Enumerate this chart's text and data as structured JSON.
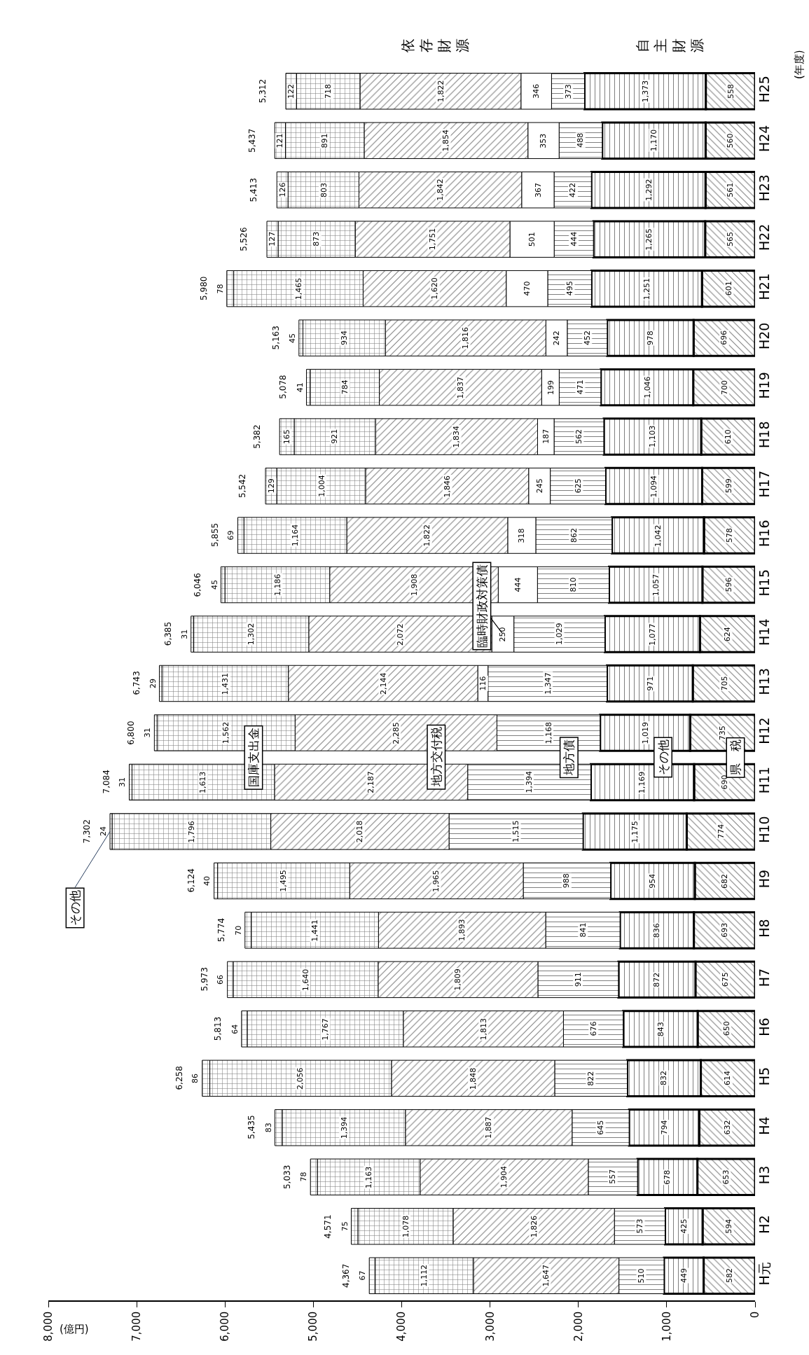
{
  "chart_data": {
    "type": "bar",
    "orientation": "horizontal",
    "stacked": true,
    "legend": false,
    "xlabel": "(億円)",
    "ylabel": "(年度)",
    "categories": [
      "H25",
      "H24",
      "H23",
      "H22",
      "H21",
      "H20",
      "H19",
      "H18",
      "H17",
      "H16",
      "H15",
      "H14",
      "H13",
      "H12",
      "H11",
      "H10",
      "H9",
      "H8",
      "H7",
      "H6",
      "H5",
      "H4",
      "H3",
      "H2",
      "H元"
    ],
    "xlim": [
      8000,
      0
    ],
    "xticks": [
      {
        "value": 0,
        "label": "0"
      },
      {
        "value": 1000,
        "label": "1,000"
      },
      {
        "value": 2000,
        "label": "2,000"
      },
      {
        "value": 3000,
        "label": "3,000"
      },
      {
        "value": 4000,
        "label": "4,000"
      },
      {
        "value": 5000,
        "label": "5,000"
      },
      {
        "value": 6000,
        "label": "6,000"
      },
      {
        "value": 7000,
        "label": "7,000"
      },
      {
        "value": 8000,
        "label": "8,000"
      }
    ],
    "series": [
      {
        "name": "県　税",
        "color": "#000000",
        "values": [
          558,
          560,
          561,
          565,
          601,
          696,
          700,
          610,
          599,
          578,
          596,
          624,
          705,
          735,
          690,
          774,
          682,
          693,
          675,
          650,
          614,
          632,
          653,
          594,
          582
        ],
        "value_labels": [
          "558",
          "560",
          "561",
          "565",
          "601",
          "696",
          "700",
          "610",
          "599",
          "578",
          "596",
          "624",
          "705",
          "735",
          "690",
          "774",
          "682",
          "693",
          "675",
          "650",
          "614",
          "632",
          "653",
          "594",
          "582"
        ]
      },
      {
        "name": "その他",
        "color": "#000000",
        "values": [
          1373,
          1170,
          1292,
          1265,
          1251,
          978,
          1046,
          1103,
          1094,
          1042,
          1057,
          1077,
          971,
          1019,
          1169,
          1175,
          954,
          836,
          872,
          843,
          832,
          794,
          678,
          425,
          449
        ],
        "value_labels": [
          "1,373",
          "1,170",
          "1,292",
          "1,265",
          "1,251",
          "978",
          "1,046",
          "1,103",
          "1,094",
          "1,042",
          "1,057",
          "1,077",
          "971",
          "1,019",
          "1,169",
          "1,175",
          "954",
          "836",
          "872",
          "843",
          "832",
          "794",
          "678",
          "425",
          "449"
        ]
      },
      {
        "name": "地方債",
        "color": "#000000",
        "values": [
          373,
          488,
          422,
          444,
          495,
          452,
          471,
          562,
          625,
          862,
          810,
          1029,
          1347,
          1168,
          1394,
          1515,
          988,
          841,
          911,
          676,
          822,
          645,
          557,
          573,
          510
        ],
        "value_labels": [
          "373",
          "488",
          "422",
          "444",
          "495",
          "452",
          "471",
          "562",
          "625",
          "862",
          "810",
          "1,029",
          "1,347",
          "1,168",
          "1,394",
          "1,515",
          "988",
          "841",
          "911",
          "676",
          "822",
          "645",
          "557",
          "573",
          "510"
        ]
      },
      {
        "name": "臨時財政対策債",
        "color": "#ffffff",
        "values": [
          346,
          353,
          367,
          501,
          470,
          242,
          199,
          187,
          245,
          318,
          444,
          250,
          116,
          null,
          null,
          null,
          null,
          null,
          null,
          null,
          null,
          null,
          null,
          null,
          null
        ],
        "value_labels": [
          "346",
          "353",
          "367",
          "501",
          "470",
          "242",
          "199",
          "187",
          "245",
          "318",
          "444",
          "250",
          "116",
          null,
          null,
          null,
          null,
          null,
          null,
          null,
          null,
          null,
          null,
          null,
          null
        ]
      },
      {
        "name": "地方交付税",
        "color": "#000000",
        "values": [
          1822,
          1854,
          1842,
          1751,
          1620,
          1816,
          1837,
          1834,
          1846,
          1822,
          1908,
          2072,
          2144,
          2285,
          2187,
          2018,
          1965,
          1893,
          1809,
          1813,
          1848,
          1887,
          1904,
          1826,
          1647
        ],
        "value_labels": [
          "1,822",
          "1,854",
          "1,842",
          "1,751",
          "1,620",
          "1,816",
          "1,837",
          "1,834",
          "1,846",
          "1,822",
          "1,908",
          "2,072",
          "2,144",
          "2,285",
          "2,187",
          "2,018",
          "1,965",
          "1,893",
          "1,809",
          "1,813",
          "1,848",
          "1,887",
          "1,904",
          "1,826",
          "1,647"
        ]
      },
      {
        "name": "国庫支出金",
        "color": "#000000",
        "values": [
          718,
          891,
          803,
          873,
          1465,
          934,
          784,
          921,
          1004,
          1164,
          1186,
          1302,
          1431,
          1562,
          1613,
          1796,
          1495,
          1441,
          1640,
          1767,
          2056,
          1394,
          1163,
          1078,
          1112
        ],
        "value_labels": [
          "718",
          "891",
          "803",
          "873",
          "1,465",
          "934",
          "784",
          "921",
          "1,004",
          "1,164",
          "1,186",
          "1,302",
          "1,431",
          "1,562",
          "1,613",
          "1,796",
          "1,495",
          "1,441",
          "1,640",
          "1,767",
          "2,056",
          "1,394",
          "1,163",
          "1,078",
          "1,112"
        ]
      },
      {
        "name": "その他",
        "color": "#000000",
        "values": [
          122,
          121,
          126,
          127,
          78,
          45,
          41,
          165,
          129,
          69,
          45,
          31,
          29,
          31,
          31,
          24,
          40,
          70,
          66,
          64,
          86,
          83,
          78,
          75,
          67
        ],
        "value_labels": [
          "122",
          "121",
          "126",
          "127",
          "78",
          "45",
          "41",
          "165",
          "129",
          "69",
          "45",
          "31",
          "29",
          "31",
          "31",
          "24",
          "40",
          "70",
          "66",
          "64",
          "86",
          "83",
          "78",
          "75",
          "67"
        ]
      }
    ],
    "totals": [
      "5,312",
      "5,437",
      "5,413",
      "5,526",
      "5,980",
      "5,163",
      "5,078",
      "5,382",
      "5,542",
      "5,855",
      "6,046",
      "6,385",
      "6,743",
      "6,800",
      "7,084",
      "7,302",
      "6,124",
      "5,774",
      "5,973",
      "5,813",
      "6,258",
      "5,435",
      "5,033",
      "4,571",
      "4,367"
    ],
    "annotations": [
      "依存財源",
      "自主財源"
    ]
  }
}
